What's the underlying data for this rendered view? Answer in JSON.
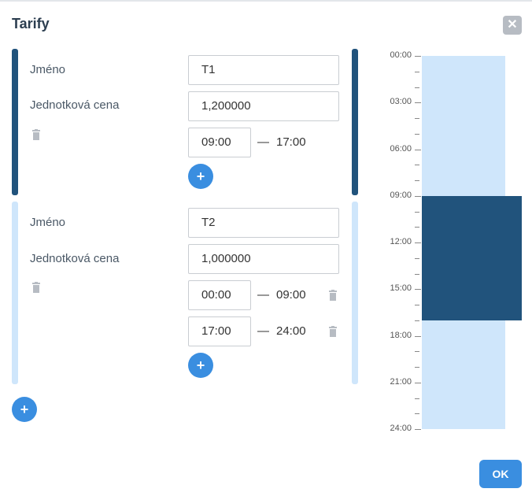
{
  "dialog": {
    "title": "Tarify",
    "close_icon": "close-icon",
    "ok_label": "OK"
  },
  "labels": {
    "name": "Jméno",
    "unit_price": "Jednotková cena"
  },
  "tariffs": [
    {
      "name": "T1",
      "unit_price": "1,200000",
      "color": "#21537c",
      "intervals": [
        {
          "start": "09:00",
          "end": "17:00"
        }
      ]
    },
    {
      "name": "T2",
      "unit_price": "1,000000",
      "color": "#cfe6fb",
      "intervals": [
        {
          "start": "00:00",
          "end": "09:00"
        },
        {
          "start": "17:00",
          "end": "24:00"
        }
      ]
    }
  ],
  "timeline": {
    "tick_labels": [
      "00:00",
      "03:00",
      "06:00",
      "09:00",
      "12:00",
      "15:00",
      "18:00",
      "21:00",
      "24:00"
    ],
    "blocks": [
      {
        "tariff": "T2",
        "start_hour": 0,
        "end_hour": 9,
        "color": "#cfe6fb"
      },
      {
        "tariff": "T1",
        "start_hour": 9,
        "end_hour": 17,
        "color": "#21537c"
      },
      {
        "tariff": "T2",
        "start_hour": 17,
        "end_hour": 24,
        "color": "#cfe6fb"
      }
    ]
  },
  "icons": {
    "add": "plus-icon",
    "delete": "trash-icon"
  },
  "colors": {
    "accent": "#3a8ee0",
    "tariff1": "#21537c",
    "tariff2": "#cfe6fb"
  }
}
